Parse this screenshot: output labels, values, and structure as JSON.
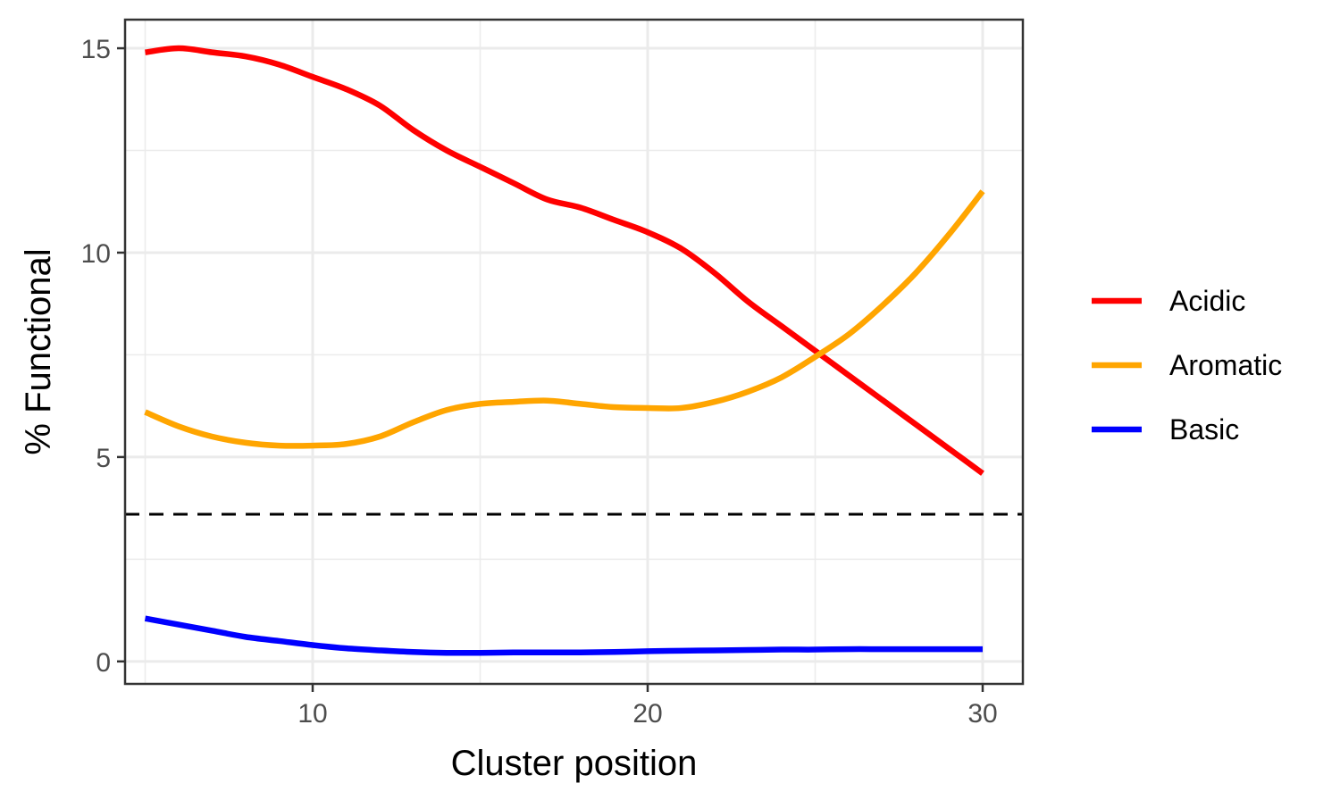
{
  "chart_data": {
    "type": "line",
    "title": "",
    "xlabel": "Cluster position",
    "ylabel": "% Functional",
    "xlim": [
      4.4,
      31.2
    ],
    "ylim": [
      -0.55,
      15.7
    ],
    "x_ticks": [
      10,
      20,
      30
    ],
    "y_ticks": [
      0,
      5,
      10,
      15
    ],
    "x_minor_ticks": [
      5,
      15,
      25
    ],
    "y_minor_ticks": [
      2.5,
      7.5,
      12.5
    ],
    "grid": true,
    "legend_position": "right",
    "reference_line": {
      "y": 3.6,
      "style": "dashed",
      "color": "#000000"
    },
    "series": [
      {
        "name": "Acidic",
        "color": "#ff0000",
        "x": [
          5,
          6,
          7,
          8,
          9,
          10,
          11,
          12,
          13,
          14,
          15,
          16,
          17,
          18,
          19,
          20,
          21,
          22,
          23,
          24,
          25,
          26,
          27,
          28,
          29,
          30
        ],
        "y": [
          14.9,
          15.0,
          14.9,
          14.8,
          14.6,
          14.3,
          14.0,
          13.6,
          13.0,
          12.5,
          12.1,
          11.7,
          11.3,
          11.1,
          10.8,
          10.5,
          10.1,
          9.5,
          8.8,
          8.2,
          7.6,
          7.0,
          6.4,
          5.8,
          5.2,
          4.6
        ]
      },
      {
        "name": "Aromatic",
        "color": "#ffa500",
        "x": [
          5,
          6,
          7,
          8,
          9,
          10,
          11,
          12,
          13,
          14,
          15,
          16,
          17,
          18,
          19,
          20,
          21,
          22,
          23,
          24,
          25,
          26,
          27,
          28,
          29,
          30
        ],
        "y": [
          6.1,
          5.75,
          5.5,
          5.35,
          5.28,
          5.28,
          5.32,
          5.5,
          5.85,
          6.15,
          6.3,
          6.35,
          6.38,
          6.3,
          6.22,
          6.2,
          6.2,
          6.35,
          6.6,
          6.95,
          7.45,
          8.0,
          8.7,
          9.5,
          10.45,
          11.5
        ]
      },
      {
        "name": "Basic",
        "color": "#0000ff",
        "x": [
          5,
          6,
          7,
          8,
          9,
          10,
          11,
          12,
          13,
          14,
          15,
          16,
          17,
          18,
          19,
          20,
          21,
          22,
          23,
          24,
          25,
          26,
          27,
          28,
          29,
          30
        ],
        "y": [
          1.05,
          0.9,
          0.75,
          0.6,
          0.5,
          0.4,
          0.32,
          0.27,
          0.23,
          0.21,
          0.21,
          0.22,
          0.22,
          0.22,
          0.23,
          0.25,
          0.26,
          0.27,
          0.28,
          0.29,
          0.29,
          0.3,
          0.3,
          0.3,
          0.3,
          0.3
        ]
      }
    ]
  }
}
